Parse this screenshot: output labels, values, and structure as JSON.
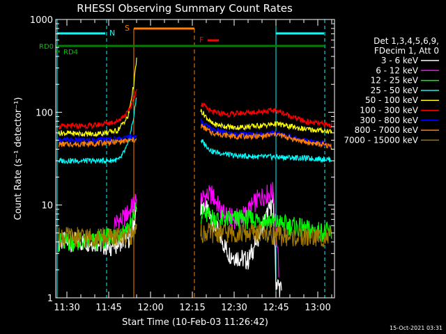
{
  "chart_data": {
    "type": "line",
    "title": "RHESSI Observing Summary Count Rates",
    "xlabel": "Start Time (10-Feb-03 11:26:42)",
    "ylabel": "Count Rate (s⁻¹ detector⁻¹)",
    "yscale": "log",
    "xlim": [
      "11:26",
      "13:06"
    ],
    "ylim": [
      1,
      1000
    ],
    "x_ticks": [
      "11:30",
      "11:45",
      "12:00",
      "12:15",
      "12:30",
      "12:45",
      "13:00"
    ],
    "y_ticks": [
      "1",
      "10",
      "100",
      "1000"
    ],
    "legend_header": [
      "Det 1,3,4,5,6,9,",
      "FDecim 1, Att 0"
    ],
    "legend_position": "right",
    "footer_date": "15-Oct-2021 03:31",
    "annotations": {
      "night_label": "N",
      "saa_label": "S",
      "flare_label": "F",
      "rd0_label": "RD0",
      "rd4_label": "RD4"
    },
    "segments": [
      {
        "start": "11:27",
        "end": "11:55"
      },
      {
        "start": "12:18",
        "end": "13:05"
      }
    ],
    "series": [
      {
        "name": "3 - 6 keV",
        "color": "#ffffff",
        "points": [
          [
            "11:27",
            4
          ],
          [
            "11:40",
            4
          ],
          [
            "11:45",
            3.5
          ],
          [
            "11:49",
            4
          ],
          [
            "11:53",
            4.5
          ],
          [
            "11:55",
            9
          ],
          [
            "12:19",
            10
          ],
          [
            "12:22",
            7
          ],
          [
            "12:28",
            3
          ],
          [
            "12:35",
            2.5
          ],
          [
            "12:42",
            8
          ],
          [
            "12:44",
            11
          ],
          [
            "12:45",
            1.5
          ],
          [
            "12:47",
            1.2
          ]
        ]
      },
      {
        "name": "6 - 12 keV",
        "color": "#ff00ff",
        "points": [
          [
            "11:47",
            6.5
          ],
          [
            "11:50",
            7
          ],
          [
            "11:53",
            9
          ],
          [
            "11:55",
            12
          ],
          [
            "12:18",
            12
          ],
          [
            "12:22",
            13
          ],
          [
            "12:26",
            8
          ],
          [
            "12:30",
            7
          ],
          [
            "12:34",
            8
          ],
          [
            "12:39",
            12
          ],
          [
            "12:44",
            14
          ],
          [
            "12:45",
            6
          ],
          [
            "12:46",
            2
          ]
        ]
      },
      {
        "name": "12 - 25 keV",
        "color": "#00ff00",
        "points": [
          [
            "11:27",
            4
          ],
          [
            "11:40",
            4
          ],
          [
            "11:45",
            4.5
          ],
          [
            "11:49",
            5
          ],
          [
            "11:53",
            6
          ],
          [
            "11:55",
            10
          ],
          [
            "12:18",
            8
          ],
          [
            "12:25",
            7
          ],
          [
            "12:33",
            7
          ],
          [
            "12:40",
            7
          ],
          [
            "12:45",
            6.5
          ],
          [
            "12:55",
            5.5
          ],
          [
            "13:05",
            5
          ]
        ]
      },
      {
        "name": "25 - 50 keV",
        "color": "#00ffff",
        "points": [
          [
            "11:27",
            30
          ],
          [
            "11:45",
            30
          ],
          [
            "11:49",
            31
          ],
          [
            "11:52",
            45
          ],
          [
            "11:54",
            90
          ],
          [
            "11:55",
            150
          ],
          [
            "12:18",
            50
          ],
          [
            "12:22",
            38
          ],
          [
            "12:30",
            34
          ],
          [
            "12:40",
            33
          ],
          [
            "12:45",
            33
          ],
          [
            "12:55",
            32
          ],
          [
            "13:05",
            31
          ]
        ]
      },
      {
        "name": "50 - 100 keV",
        "color": "#ffff00",
        "points": [
          [
            "11:27",
            60
          ],
          [
            "11:40",
            58
          ],
          [
            "11:48",
            63
          ],
          [
            "11:52",
            90
          ],
          [
            "11:54",
            200
          ],
          [
            "11:55",
            370
          ],
          [
            "12:18",
            105
          ],
          [
            "12:22",
            75
          ],
          [
            "12:30",
            68
          ],
          [
            "12:40",
            72
          ],
          [
            "12:45",
            75
          ],
          [
            "12:55",
            66
          ],
          [
            "13:05",
            62
          ]
        ]
      },
      {
        "name": "100 - 300 keV",
        "color": "#ff0000",
        "points": [
          [
            "11:27",
            70
          ],
          [
            "11:40",
            72
          ],
          [
            "11:48",
            80
          ],
          [
            "11:52",
            100
          ],
          [
            "11:54",
            140
          ],
          [
            "11:55",
            180
          ],
          [
            "12:18",
            125
          ],
          [
            "12:22",
            100
          ],
          [
            "12:28",
            95
          ],
          [
            "12:36",
            100
          ],
          [
            "12:42",
            103
          ],
          [
            "12:45",
            105
          ],
          [
            "12:55",
            80
          ],
          [
            "13:05",
            72
          ]
        ]
      },
      {
        "name": "300 - 800 keV",
        "color": "#0000ff",
        "points": [
          [
            "11:27",
            50
          ],
          [
            "11:40",
            50
          ],
          [
            "11:48",
            52
          ],
          [
            "11:54",
            55
          ],
          [
            "11:55",
            55
          ],
          [
            "12:18",
            80
          ],
          [
            "12:22",
            65
          ],
          [
            "12:30",
            58
          ],
          [
            "12:40",
            58
          ],
          [
            "12:45",
            60
          ],
          [
            "12:55",
            50
          ],
          [
            "13:05",
            44
          ]
        ]
      },
      {
        "name": "800 - 7000 keV",
        "color": "#ff8000",
        "points": [
          [
            "11:27",
            45
          ],
          [
            "11:40",
            46
          ],
          [
            "11:48",
            48
          ],
          [
            "11:54",
            50
          ],
          [
            "11:55",
            50
          ],
          [
            "12:18",
            72
          ],
          [
            "12:22",
            60
          ],
          [
            "12:30",
            55
          ],
          [
            "12:40",
            55
          ],
          [
            "12:45",
            58
          ],
          [
            "12:55",
            48
          ],
          [
            "13:05",
            43
          ]
        ]
      },
      {
        "name": "7000 - 15000 keV",
        "color": "#a07800",
        "points": [
          [
            "11:27",
            4.5
          ],
          [
            "11:40",
            4.5
          ],
          [
            "11:50",
            4.5
          ],
          [
            "11:55",
            5
          ],
          [
            "12:18",
            5
          ],
          [
            "12:30",
            5
          ],
          [
            "12:40",
            5
          ],
          [
            "12:50",
            4.5
          ],
          [
            "13:05",
            4.5
          ]
        ]
      }
    ]
  }
}
